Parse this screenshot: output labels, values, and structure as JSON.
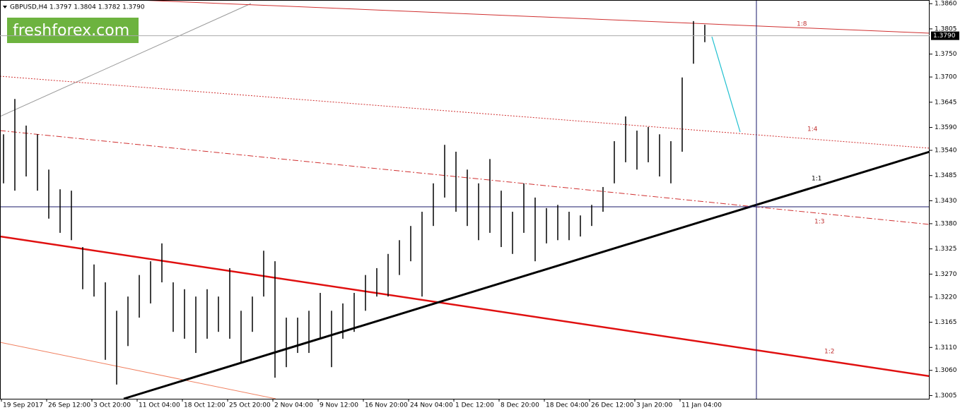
{
  "chart_data": {
    "type": "range",
    "title": "GBPUSD,H4  1.3797 1.3804 1.3782 1.3790",
    "logo": "freshforex.com",
    "series": [
      {
        "name": "GBPUSD",
        "color": "#000000",
        "highs": [
          1.3575,
          1.3652,
          1.3594,
          1.3575,
          1.3498,
          1.3455,
          1.3452,
          1.3329,
          1.3291,
          1.3252,
          1.319,
          1.3221,
          1.3268,
          1.3298,
          1.3337,
          1.3252,
          1.3237,
          1.3221,
          1.3237,
          1.3221,
          1.3283,
          1.319,
          1.3221,
          1.3321,
          1.3298,
          1.3175,
          1.3175,
          1.319,
          1.3229,
          1.319,
          1.3206,
          1.3229,
          1.3268,
          1.3283,
          1.3314,
          1.3344,
          1.3375,
          1.3406,
          1.3468,
          1.3552,
          1.3537,
          1.3498,
          1.3468,
          1.3521,
          1.3452,
          1.3406,
          1.3468,
          1.3437,
          1.3414,
          1.3421,
          1.3406,
          1.3398,
          1.3421,
          1.346,
          1.356,
          1.3614,
          1.3583,
          1.3591,
          1.3575,
          1.356,
          1.3699,
          1.3822,
          1.3814
        ],
        "lows": [
          1.3468,
          1.3452,
          1.3483,
          1.3452,
          1.3391,
          1.336,
          1.3344,
          1.3237,
          1.3221,
          1.3083,
          1.3029,
          1.3113,
          1.3175,
          1.3206,
          1.3252,
          1.3144,
          1.3129,
          1.3098,
          1.3129,
          1.3144,
          1.3129,
          1.3075,
          1.3144,
          1.3221,
          1.3044,
          1.3067,
          1.3098,
          1.3098,
          1.3129,
          1.3067,
          1.3129,
          1.3144,
          1.319,
          1.3221,
          1.3221,
          1.3268,
          1.3298,
          1.3221,
          1.3375,
          1.3437,
          1.3406,
          1.3375,
          1.3344,
          1.336,
          1.3329,
          1.3314,
          1.336,
          1.3298,
          1.3337,
          1.3344,
          1.3344,
          1.3352,
          1.3375,
          1.3406,
          1.3468,
          1.3514,
          1.3498,
          1.3514,
          1.3483,
          1.3468,
          1.3537,
          1.3729,
          1.3776
        ]
      }
    ],
    "ylim": [
      1.2998,
      1.3868
    ],
    "yticks": [
      {
        "value": 1.386,
        "label": "1.3860"
      },
      1.3805,
      {
        "value": 1.375,
        "label": "1.3750"
      },
      {
        "value": 1.37,
        "label": "1.3700"
      },
      1.3645,
      {
        "value": 1.359,
        "label": "1.3590"
      },
      {
        "value": 1.354,
        "label": "1.3540"
      },
      1.3485,
      {
        "value": 1.343,
        "label": "1.3430"
      },
      {
        "value": 1.338,
        "label": "1.3380"
      },
      1.3325,
      {
        "value": 1.327,
        "label": "1.3270"
      },
      {
        "value": 1.322,
        "label": "1.3220"
      },
      1.3165,
      {
        "value": 1.311,
        "label": "1.3110"
      },
      {
        "value": 1.306,
        "label": "1.3060"
      },
      1.3005
    ],
    "current_price": {
      "value": 1.379,
      "label": "1.3790"
    },
    "time_labels": [
      "19 Sep 2017",
      "26 Sep 12:00",
      "3 Oct 20:00",
      "11 Oct 04:00",
      "18 Oct 12:00",
      "25 Oct 20:00",
      "2 Nov 04:00",
      "9 Nov 12:00",
      "16 Nov 20:00",
      "24 Nov 04:00",
      "1 Dec 12:00",
      "8 Dec 20:00",
      "18 Dec 04:00",
      "26 Dec 12:00",
      "3 Jan 20:00",
      "11 Jan 04:00"
    ],
    "fan_labels": [
      "1:8",
      "1:4",
      "1:1",
      "1:3",
      "1:2"
    ]
  }
}
